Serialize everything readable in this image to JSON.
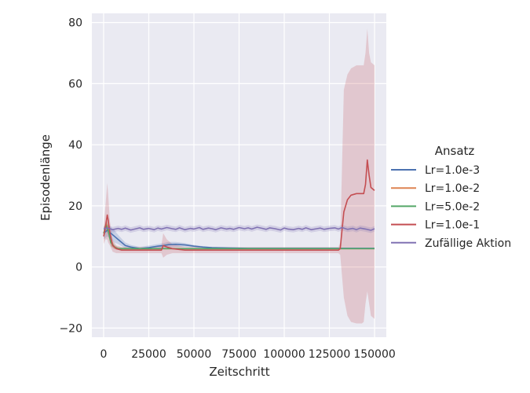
{
  "chart_data": {
    "type": "line",
    "title": "",
    "xlabel": "Zeitschritt",
    "ylabel": "Episodenlänge",
    "xlim": [
      -6500,
      156500
    ],
    "ylim": [
      -23,
      83
    ],
    "x_ticks": [
      0,
      25000,
      50000,
      75000,
      100000,
      125000,
      150000
    ],
    "y_ticks": [
      -20,
      0,
      20,
      40,
      60,
      80
    ],
    "x_tick_labels": [
      "0",
      "25000",
      "50000",
      "75000",
      "100000",
      "125000",
      "150000"
    ],
    "y_tick_labels": [
      "−20",
      "0",
      "20",
      "40",
      "60",
      "80"
    ],
    "grid": true,
    "legend_title": "Ansatz",
    "legend_position": "right",
    "series": [
      {
        "name": "Lr=1.0e-3",
        "color": "#4c72b0",
        "x": [
          0,
          2000,
          4000,
          6000,
          8000,
          10000,
          12000,
          15000,
          20000,
          25000,
          30000,
          33000,
          36000,
          40000,
          45000,
          50000,
          55000,
          60000,
          70000,
          80000,
          100000,
          120000,
          140000,
          150000
        ],
        "y": [
          11,
          12,
          11,
          10,
          9,
          8,
          7,
          6.5,
          6,
          6.3,
          6.8,
          7,
          7.3,
          7.4,
          7.2,
          6.8,
          6.5,
          6.3,
          6.2,
          6.1,
          6.1,
          6.1,
          6.1,
          6.1
        ],
        "band_upper": [
          13,
          14,
          13,
          12,
          10.5,
          9.2,
          8,
          7.2,
          6.6,
          7,
          7.5,
          7.8,
          8.2,
          8.2,
          7.8,
          7.2,
          6.8,
          6.5,
          6.3,
          6.2,
          6.2,
          6.2,
          6.2,
          6.2
        ],
        "band_lower": [
          9,
          10,
          9,
          8,
          7.5,
          6.8,
          6,
          5.8,
          5.5,
          5.6,
          6.1,
          6.2,
          6.4,
          6.6,
          6.6,
          6.4,
          6.2,
          6.1,
          6.1,
          6,
          6,
          6,
          6,
          6
        ]
      },
      {
        "name": "Lr=1.0e-2",
        "color": "#dd8452",
        "x": [
          0,
          1500,
          2500,
          4000,
          6000,
          8000,
          10000,
          20000,
          50000,
          100000,
          150000
        ],
        "y": [
          11,
          14,
          12.5,
          8,
          6.5,
          6,
          6,
          6,
          6,
          6,
          6
        ],
        "band_upper": [
          12.5,
          16,
          14,
          9.5,
          7.2,
          6.5,
          6.3,
          6.2,
          6.2,
          6.2,
          6.2
        ],
        "band_lower": [
          9.5,
          12,
          11,
          6.8,
          5.8,
          5.6,
          5.7,
          5.8,
          5.8,
          5.8,
          5.8
        ]
      },
      {
        "name": "Lr=5.0e-2",
        "color": "#55a868",
        "x": [
          0,
          1500,
          2500,
          4000,
          6000,
          8000,
          10000,
          20000,
          50000,
          100000,
          150000
        ],
        "y": [
          11,
          13.5,
          12,
          8,
          6.5,
          6,
          6,
          6,
          6,
          6,
          6
        ],
        "band_upper": [
          12.5,
          15.5,
          13.5,
          9.3,
          7.1,
          6.4,
          6.3,
          6.2,
          6.2,
          6.2,
          6.2
        ],
        "band_lower": [
          9.5,
          11.5,
          10.5,
          6.7,
          5.9,
          5.6,
          5.7,
          5.8,
          5.8,
          5.8,
          5.8
        ]
      },
      {
        "name": "Lr=1.0e-1",
        "color": "#c44e52",
        "x": [
          0,
          1000,
          2000,
          2500,
          3500,
          5000,
          7000,
          10000,
          20000,
          30000,
          32000,
          33000,
          35000,
          38000,
          45000,
          60000,
          80000,
          100000,
          120000,
          130000,
          131000,
          133000,
          135000,
          137000,
          140000,
          143000,
          144000,
          145000,
          146000,
          147000,
          148000,
          150000
        ],
        "y": [
          10,
          13,
          17,
          15.5,
          11,
          7,
          6,
          5.5,
          5.5,
          5.5,
          5.5,
          7,
          6.5,
          6,
          5.5,
          5.5,
          5.5,
          5.5,
          5.5,
          5.5,
          6,
          18,
          22,
          23.5,
          24,
          24,
          24,
          27,
          35,
          30,
          26,
          25
        ],
        "band_upper": [
          13,
          20,
          27.5,
          24,
          15,
          9,
          7,
          6.5,
          6.5,
          6.5,
          7,
          11,
          9,
          7.5,
          6.5,
          6.5,
          6.5,
          6.5,
          6.5,
          6.5,
          8,
          58,
          63,
          65,
          66,
          66,
          66,
          70,
          78,
          70,
          67,
          66
        ],
        "band_lower": [
          7.5,
          9,
          9,
          8,
          7,
          5,
          4.5,
          4.5,
          4.5,
          4.5,
          4.5,
          3,
          4,
          4.5,
          4.5,
          4.5,
          4.5,
          4.5,
          4.5,
          4.5,
          4,
          -10,
          -16,
          -18,
          -18.5,
          -18.5,
          -18,
          -12,
          -8,
          -12,
          -16,
          -17
        ]
      },
      {
        "name": "Zufällige Aktion",
        "color": "#8172b3",
        "x": [
          0,
          2000,
          5000,
          8000,
          10000,
          12000,
          15000,
          18000,
          20000,
          22000,
          25000,
          28000,
          30000,
          32000,
          35000,
          38000,
          40000,
          42000,
          45000,
          48000,
          50000,
          53000,
          55000,
          58000,
          60000,
          62000,
          65000,
          68000,
          70000,
          72000,
          75000,
          78000,
          80000,
          82000,
          85000,
          88000,
          90000,
          92000,
          95000,
          98000,
          100000,
          102000,
          105000,
          108000,
          110000,
          112000,
          115000,
          118000,
          120000,
          122000,
          125000,
          128000,
          130000,
          132000,
          135000,
          138000,
          140000,
          142000,
          145000,
          148000,
          150000
        ],
        "y": [
          12.4,
          12.8,
          12.2,
          12.6,
          12.3,
          12.7,
          12.1,
          12.5,
          12.8,
          12.3,
          12.6,
          12.2,
          12.7,
          12.4,
          12.9,
          12.5,
          12.3,
          12.8,
          12.2,
          12.6,
          12.4,
          12.9,
          12.3,
          12.7,
          12.5,
          12.2,
          12.8,
          12.4,
          12.6,
          12.3,
          12.9,
          12.5,
          12.8,
          12.4,
          13.0,
          12.6,
          12.3,
          12.8,
          12.5,
          12.1,
          12.7,
          12.4,
          12.2,
          12.6,
          12.3,
          12.8,
          12.2,
          12.5,
          12.7,
          12.3,
          12.6,
          12.8,
          12.4,
          12.9,
          12.3,
          12.6,
          12.2,
          12.7,
          12.4,
          12.0,
          12.5
        ],
        "band_upper": [
          13.3,
          13.7,
          13.1,
          13.5,
          13.2,
          13.6,
          13.0,
          13.4,
          13.7,
          13.2,
          13.5,
          13.1,
          13.6,
          13.3,
          13.8,
          13.4,
          13.2,
          13.7,
          13.1,
          13.5,
          13.3,
          13.8,
          13.2,
          13.6,
          13.4,
          13.1,
          13.7,
          13.3,
          13.5,
          13.2,
          13.8,
          13.4,
          13.7,
          13.3,
          13.9,
          13.5,
          13.2,
          13.7,
          13.4,
          13.0,
          13.6,
          13.3,
          13.1,
          13.5,
          13.2,
          13.7,
          13.1,
          13.4,
          13.6,
          13.2,
          13.5,
          13.7,
          13.3,
          13.8,
          13.2,
          13.5,
          13.1,
          13.6,
          13.3,
          12.9,
          13.4
        ],
        "band_lower": [
          11.5,
          11.9,
          11.3,
          11.7,
          11.4,
          11.8,
          11.2,
          11.6,
          11.9,
          11.4,
          11.7,
          11.3,
          11.8,
          11.5,
          12.0,
          11.6,
          11.4,
          11.9,
          11.3,
          11.7,
          11.5,
          12.0,
          11.4,
          11.8,
          11.6,
          11.3,
          11.9,
          11.5,
          11.7,
          11.4,
          12.0,
          11.6,
          11.9,
          11.5,
          12.1,
          11.7,
          11.4,
          11.9,
          11.6,
          11.2,
          11.8,
          11.5,
          11.3,
          11.7,
          11.4,
          11.9,
          11.3,
          11.6,
          11.8,
          11.4,
          11.7,
          11.9,
          11.5,
          12.0,
          11.4,
          11.7,
          11.3,
          11.8,
          11.5,
          11.1,
          11.6
        ]
      }
    ]
  }
}
